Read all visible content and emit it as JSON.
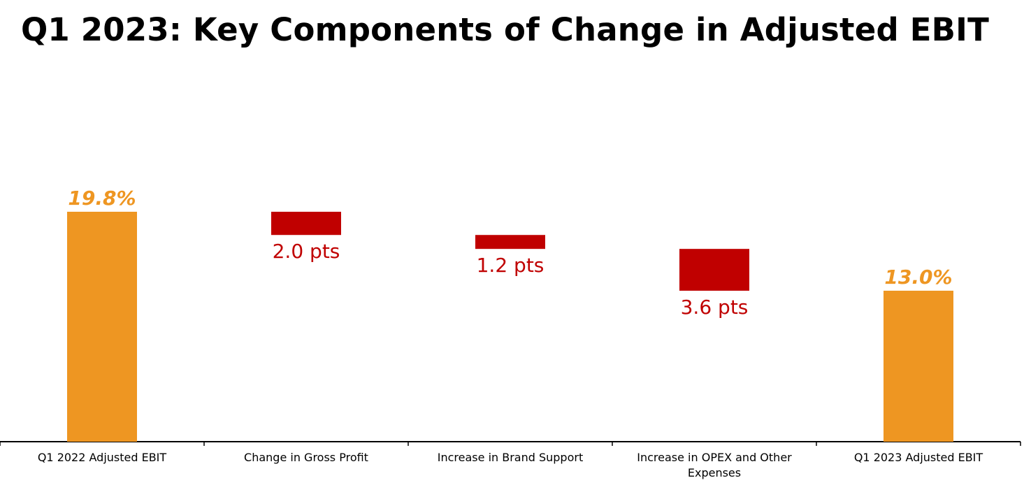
{
  "title": "Q1 2023: Key Components of Change in Adjusted EBIT",
  "chart_data": {
    "type": "bar",
    "subtype": "waterfall",
    "title": "Q1 2023: Key Components of Change in Adjusted EBIT",
    "xlabel": "",
    "ylabel": "",
    "categories": [
      "Q1 2022 Adjusted EBIT",
      "Change in Gross Profit",
      "Increase in Brand Support",
      "Increase in OPEX and Other Expenses",
      "Q1 2023 Adjusted EBIT"
    ],
    "category_lines": [
      [
        "Q1 2022 Adjusted EBIT"
      ],
      [
        "Change in Gross Profit"
      ],
      [
        "Increase in Brand Support"
      ],
      [
        "Increase in OPEX and Other",
        "Expenses"
      ],
      [
        "Q1 2023 Adjusted EBIT"
      ]
    ],
    "values": [
      19.8,
      -2.0,
      -1.2,
      -3.6,
      13.0
    ],
    "kinds": [
      "total",
      "decrease",
      "decrease",
      "decrease",
      "total"
    ],
    "data_labels": [
      "19.8%",
      "2.0 pts",
      "1.2 pts",
      "3.6 pts",
      "13.0%"
    ],
    "ylim": [
      0,
      19.8
    ],
    "grid": false,
    "legend": "none",
    "colors": {
      "total": "#EE9622",
      "decrease": "#C00000",
      "axis": "#000000"
    }
  }
}
